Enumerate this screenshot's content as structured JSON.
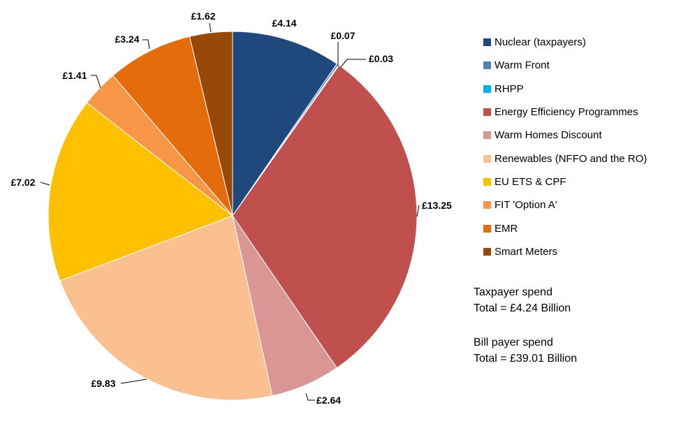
{
  "chart_data": {
    "type": "pie",
    "slices": [
      {
        "name": "Nuclear (taxpayers)",
        "value": 4.14,
        "label": "£4.14",
        "color": "#1F497D"
      },
      {
        "name": "Warm Front",
        "value": 0.07,
        "label": "£0.07",
        "color": "#4F81BD"
      },
      {
        "name": "RHPP",
        "value": 0.03,
        "label": "£0.03",
        "color": "#00B0F0"
      },
      {
        "name": "Energy Efficiency Programmes",
        "value": 13.25,
        "label": "£13.25",
        "color": "#C0504D"
      },
      {
        "name": "Warm Homes Discount",
        "value": 2.64,
        "label": "£2.64",
        "color": "#D99694"
      },
      {
        "name": "Renewables (NFFO and the RO)",
        "value": 9.83,
        "label": "£9.83",
        "color": "#FAC090"
      },
      {
        "name": "EU ETS & CPF",
        "value": 7.02,
        "label": "£7.02",
        "color": "#FFC000"
      },
      {
        "name": "FIT 'Option A'",
        "value": 1.41,
        "label": "£1.41",
        "color": "#F79646"
      },
      {
        "name": "EMR",
        "value": 3.24,
        "label": "£3.24",
        "color": "#E46C0A"
      },
      {
        "name": "Smart Meters",
        "value": 1.62,
        "label": "£1.62",
        "color": "#984807"
      }
    ],
    "legend_position": "right"
  },
  "notes": {
    "taxpayer": {
      "title": "Taxpayer spend",
      "total": "Total = £4.24 Billion"
    },
    "billpayer": {
      "title": "Bill payer spend",
      "total": "Total = £39.01 Billion"
    }
  }
}
